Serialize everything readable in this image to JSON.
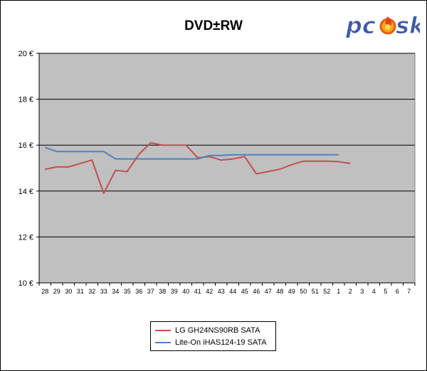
{
  "chart_data": {
    "type": "line",
    "title": "DVD±RW",
    "xlabel": "",
    "ylabel": "",
    "categories": [
      "28",
      "29",
      "30",
      "31",
      "32",
      "33",
      "34",
      "35",
      "36",
      "37",
      "38",
      "39",
      "40",
      "41",
      "42",
      "43",
      "44",
      "45",
      "46",
      "47",
      "48",
      "49",
      "50",
      "51",
      "52",
      "1",
      "2",
      "3",
      "4",
      "5",
      "6",
      "7"
    ],
    "ylim": [
      10,
      20
    ],
    "yticks": [
      10,
      12,
      14,
      16,
      18,
      20
    ],
    "ytick_labels": [
      "10 €",
      "12 €",
      "14 €",
      "16 €",
      "18 €",
      "20 €"
    ],
    "grid": true,
    "legend_position": "bottom",
    "series": [
      {
        "name": "LG GH24NS90RB SATA",
        "color": "#c0504d",
        "values": [
          14.95,
          15.05,
          15.05,
          15.2,
          15.35,
          13.9,
          14.9,
          14.85,
          15.6,
          16.1,
          16.0,
          16.0,
          16.0,
          15.45,
          15.5,
          15.35,
          15.4,
          15.5,
          14.75,
          14.85,
          14.95,
          15.15,
          15.3,
          15.3,
          15.3,
          15.28,
          15.2,
          null,
          null,
          null,
          null,
          null
        ]
      },
      {
        "name": "Lite-On iHAS124-19 SATA",
        "color": "#4f81bd",
        "values": [
          15.9,
          15.72,
          15.72,
          15.72,
          15.72,
          15.72,
          15.4,
          15.4,
          15.4,
          15.4,
          15.4,
          15.4,
          15.4,
          15.4,
          15.55,
          15.55,
          15.58,
          15.58,
          15.58,
          15.58,
          15.58,
          15.58,
          15.58,
          15.58,
          15.58,
          15.58,
          null,
          null,
          null,
          null,
          null,
          null
        ]
      }
    ]
  },
  "colors": {
    "plot_background": "#c0c0c0",
    "gridline": "#7f7f7f"
  },
  "logo": {
    "text": "pcsk",
    "letters": [
      "pc",
      "sk"
    ],
    "icon": "flame-icon",
    "fill": "#3f59a8"
  }
}
